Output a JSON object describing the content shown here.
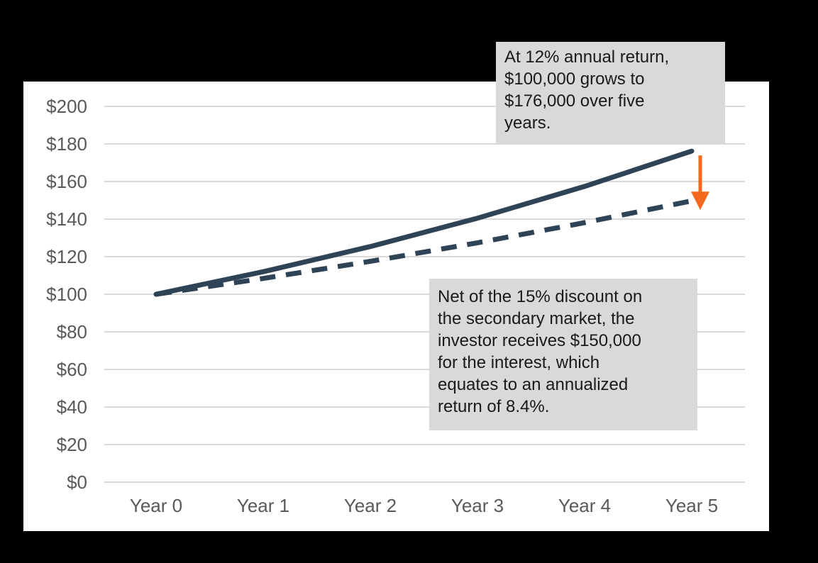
{
  "page": {
    "background": "#000000"
  },
  "chart_data": {
    "type": "line",
    "title": "",
    "x_tick_labels": [
      "Year 0",
      "Year 1",
      "Year 2",
      "Year 3",
      "Year 4",
      "Year 5"
    ],
    "y_tick_labels": [
      "$0",
      "$20",
      "$40",
      "$60",
      "$80",
      "$100",
      "$120",
      "$140",
      "$160",
      "$180",
      "$200"
    ],
    "ylim": [
      0,
      200
    ],
    "y_tick_step": 20,
    "grid": "horizontal-only",
    "legend": "none",
    "series": [
      {
        "name": "Value at 12% annual return",
        "style": "solid",
        "values": [
          100,
          112,
          125.4,
          140.5,
          157.4,
          176.2
        ]
      },
      {
        "name": "Net value at 8.4% annualized return after 15% secondary-market discount",
        "style": "dashed",
        "values": [
          100,
          108.4,
          117.5,
          127.4,
          138.1,
          149.7
        ]
      }
    ],
    "colors": {
      "line": "#2E4456",
      "arrow": "#F3691E",
      "gridline": "#D9D9D9",
      "tick_label": "#595959",
      "plot_bg": "#FFFFFF",
      "page_bg": "#000000",
      "annotation_bg": "#D9D9D9",
      "annotation_text": "#1A1A1A"
    }
  },
  "annotations": {
    "gross": "At 12% annual return,\n$100,000 grows to\n$176,000 over five\nyears.",
    "net": "Net of the 15% discount on\nthe secondary market, the\ninvestor receives $150,000\nfor the interest, which\nequates to an annualized\nreturn of 8.4%.",
    "arrow_icon": "down-arrow"
  }
}
